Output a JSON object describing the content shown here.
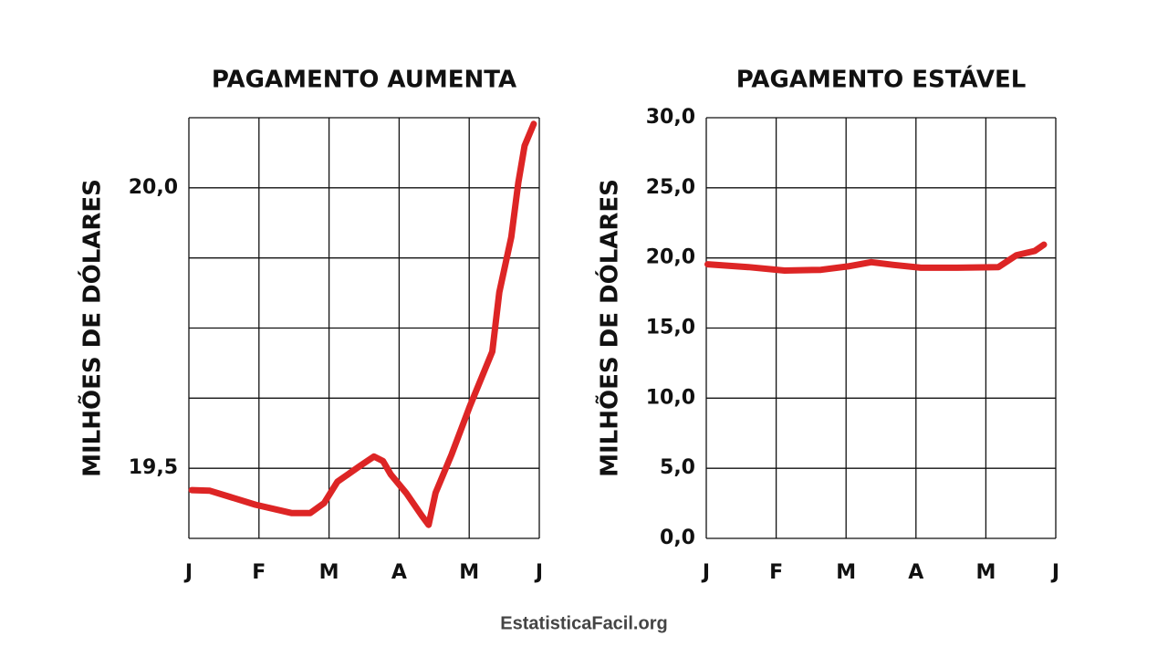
{
  "chart_data": [
    {
      "type": "line",
      "title": "PAGAMENTO AUMENTA",
      "y_label": "MILHÕES DE DÓLARES",
      "categories": [
        "J",
        "F",
        "M",
        "A",
        "M",
        "J"
      ],
      "color": "#dd2525",
      "grid": true,
      "xlim": [
        0,
        5
      ],
      "x": [
        0.04,
        0.3,
        0.95,
        1.47,
        1.73,
        1.93,
        2.12,
        2.45,
        2.64,
        2.77,
        2.88,
        3.1,
        3.32,
        3.42,
        3.52,
        3.75,
        4.01,
        4.33,
        4.43,
        4.6,
        4.7,
        4.79,
        4.92
      ],
      "values": [
        19.461,
        19.46,
        19.435,
        19.42,
        19.42,
        19.438,
        19.476,
        19.505,
        19.521,
        19.513,
        19.489,
        19.456,
        19.416,
        19.399,
        19.456,
        19.525,
        19.611,
        19.708,
        19.814,
        19.912,
        20.009,
        20.075,
        20.114
      ],
      "ylim": [
        19.375,
        20.125
      ],
      "yticks": [
        {
          "value": 19.375,
          "label": null
        },
        {
          "value": 19.5,
          "label": "19,5"
        },
        {
          "value": 19.625,
          "label": null
        },
        {
          "value": 19.75,
          "label": null
        },
        {
          "value": 19.875,
          "label": null
        },
        {
          "value": 20,
          "label": "20,0"
        },
        {
          "value": 20.125,
          "label": null
        }
      ]
    },
    {
      "type": "line",
      "title": "PAGAMENTO ESTÁVEL",
      "y_label": "MILHÕES DE DÓLARES",
      "categories": [
        "J",
        "F",
        "M",
        "A",
        "M",
        "J"
      ],
      "color": "#dd2525",
      "grid": true,
      "xlim": [
        0,
        5
      ],
      "x": [
        0.02,
        0.6,
        1.12,
        1.64,
        2.03,
        2.36,
        2.68,
        3.07,
        3.59,
        4.18,
        4.44,
        4.7,
        4.83
      ],
      "values": [
        19.55,
        19.35,
        19.1,
        19.15,
        19.4,
        19.7,
        19.5,
        19.3,
        19.3,
        19.35,
        20.2,
        20.5,
        20.95
      ],
      "ylim": [
        0,
        30
      ],
      "yticks": [
        {
          "value": 0,
          "label": "0,0"
        },
        {
          "value": 5,
          "label": "5,0"
        },
        {
          "value": 10,
          "label": "10,0"
        },
        {
          "value": 15,
          "label": "15,0"
        },
        {
          "value": 20,
          "label": "20,0"
        },
        {
          "value": 25,
          "label": "25,0"
        },
        {
          "value": 30,
          "label": "30,0"
        }
      ]
    }
  ],
  "footer": "EstatisticaFacil.org"
}
